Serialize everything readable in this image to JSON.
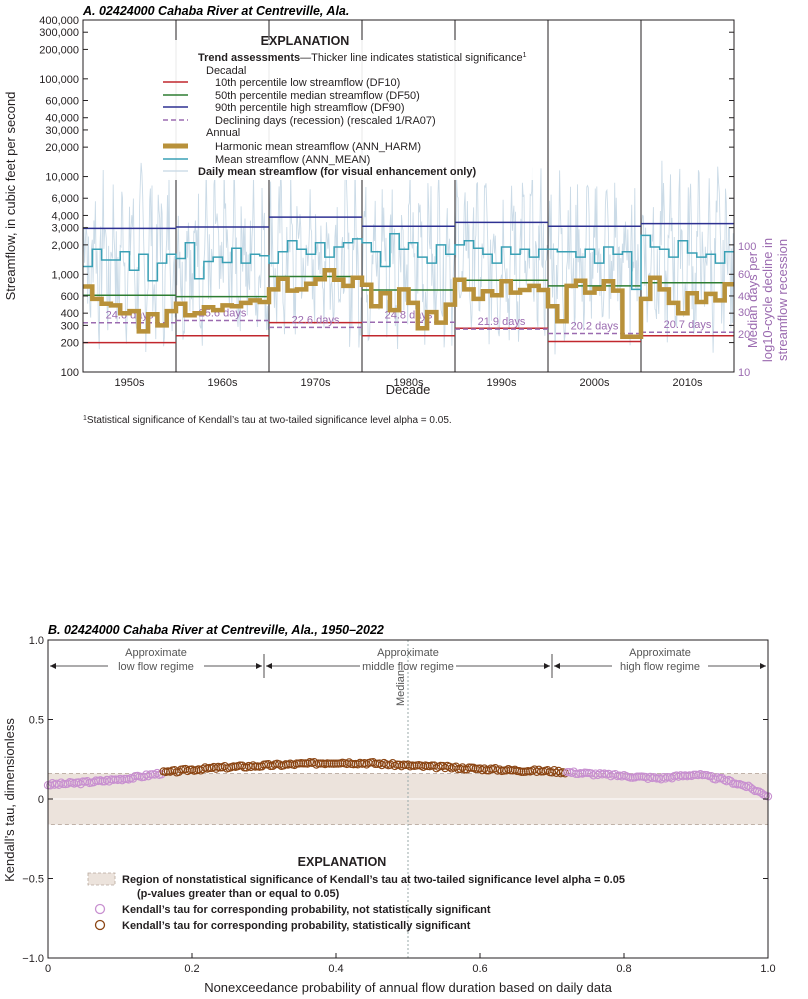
{
  "chart_data": [
    {
      "type": "line",
      "title": "A. 02424000 Cahaba River at Centreville, Ala.",
      "xlabel": "Decade",
      "ylabel": "Streamflow, in cubic feet per second",
      "y2label": [
        "Median days per",
        "log10-cycle decline in",
        "streamflow recession"
      ],
      "yscale": "log",
      "ylim": [
        100,
        400000
      ],
      "y_ticks": [
        "100",
        "200",
        "300",
        "400",
        "600",
        "1,000",
        "2,000",
        "3,000",
        "4,000",
        "6,000",
        "10,000",
        "20,000",
        "30,000",
        "40,000",
        "60,000",
        "100,000",
        "200,000",
        "300,000",
        "400,000"
      ],
      "y_tick_values": [
        100,
        200,
        300,
        400,
        600,
        1000,
        2000,
        3000,
        4000,
        6000,
        10000,
        20000,
        30000,
        40000,
        60000,
        100000,
        200000,
        300000,
        400000
      ],
      "y2_ticks": [
        "10",
        "20",
        "30",
        "40",
        "60",
        "100"
      ],
      "y2_tick_values": [
        10,
        20,
        30,
        40,
        60,
        100
      ],
      "decades": [
        "1950s",
        "1960s",
        "1970s",
        "1980s",
        "1990s",
        "2000s",
        "2010s"
      ],
      "xlim": [
        1945,
        2015
      ],
      "decadal_trends": {
        "DF10": [
          200,
          235,
          320,
          235,
          280,
          205,
          235
        ],
        "DF50": [
          610,
          590,
          950,
          690,
          870,
          760,
          820
        ],
        "DF90": [
          2950,
          3050,
          3850,
          3100,
          3400,
          3100,
          3300
        ],
        "recession_days": [
          24.6,
          25.6,
          22.6,
          24.8,
          21.9,
          20.2,
          20.7
        ],
        "recession_labels": [
          "24.6 days",
          "25.6 days",
          "22.6 days",
          "24.8 days",
          "21.9 days",
          "20.2 days",
          "20.7 days"
        ]
      },
      "annual_years": [
        1945,
        1946,
        1947,
        1948,
        1949,
        1950,
        1951,
        1952,
        1953,
        1954,
        1955,
        1956,
        1957,
        1958,
        1959,
        1960,
        1961,
        1962,
        1963,
        1964,
        1965,
        1966,
        1967,
        1968,
        1969,
        1970,
        1971,
        1972,
        1973,
        1974,
        1975,
        1976,
        1977,
        1978,
        1979,
        1980,
        1981,
        1982,
        1983,
        1984,
        1985,
        1986,
        1987,
        1988,
        1989,
        1990,
        1991,
        1992,
        1993,
        1994,
        1995,
        1996,
        1997,
        1998,
        1999,
        2000,
        2001,
        2002,
        2003,
        2004,
        2005,
        2006,
        2007,
        2008,
        2009,
        2010,
        2011,
        2012,
        2013,
        2014
      ],
      "ANN_HARM": [
        750,
        560,
        500,
        480,
        400,
        420,
        260,
        390,
        300,
        420,
        500,
        380,
        400,
        460,
        430,
        480,
        470,
        510,
        540,
        520,
        700,
        900,
        680,
        700,
        800,
        890,
        1100,
        880,
        760,
        920,
        780,
        470,
        640,
        430,
        700,
        510,
        280,
        410,
        320,
        490,
        880,
        700,
        560,
        670,
        610,
        850,
        650,
        690,
        760,
        690,
        470,
        330,
        760,
        860,
        650,
        710,
        850,
        680,
        230,
        230,
        560,
        920,
        700,
        510,
        400,
        640,
        520,
        630,
        540,
        790
      ],
      "ANN_MEAN": [
        1200,
        1800,
        1400,
        1400,
        1700,
        1100,
        1600,
        860,
        1300,
        1600,
        1450,
        2100,
        900,
        1350,
        1500,
        1320,
        1850,
        1300,
        1600,
        1550,
        1300,
        1700,
        2200,
        1800,
        1600,
        2100,
        1500,
        1900,
        2100,
        2300,
        2100,
        1700,
        1200,
        2600,
        1800,
        2100,
        1500,
        1300,
        2000,
        1600,
        2000,
        2200,
        1850,
        1600,
        1300,
        1900,
        1600,
        1800,
        1500,
        1800,
        1800,
        1700,
        1700,
        1500,
        1800,
        1300,
        1900,
        1600,
        1700,
        700,
        2500,
        1900,
        1800,
        1500,
        2200,
        1650,
        1500,
        1600,
        1300,
        1700
      ],
      "legend": {
        "title": "EXPLANATION",
        "subtitle_bold": "Trend assessments",
        "subtitle_rest": "—Thicker line indicates statistical significance",
        "decadal": "Decadal",
        "df10": "10th percentile low streamflow (DF10)",
        "df50": "50th percentile median streamflow (DF50)",
        "df90": "90th percentile high streamflow (DF90)",
        "ra07": "Declining days (recession) (rescaled 1/RA07)",
        "annual": "Annual",
        "harm": "Harmonic mean streamflow (ANN_HARM)",
        "mean": "Mean streamflow (ANN_MEAN)",
        "daily": "Daily mean streamflow (for visual enhancement only)"
      },
      "footnote_mark": "1",
      "footnote": "Statistical significance of Kendall’s tau at two-tailed significance level alpha = 0.05."
    },
    {
      "type": "scatter",
      "title": "B. 02424000 Cahaba River at Centreville, Ala., 1950–2022",
      "xlabel": "Nonexceedance probability of annual flow duration based on daily data",
      "ylabel": "Kendall’s tau, dimensionless",
      "xlim": [
        0,
        1
      ],
      "ylim": [
        -1,
        1
      ],
      "x_ticks": [
        "0",
        "0.2",
        "0.4",
        "0.6",
        "0.8",
        "1.0"
      ],
      "x_tick_values": [
        0,
        0.2,
        0.4,
        0.6,
        0.8,
        1.0
      ],
      "y_ticks": [
        "−1.0",
        "−0.5",
        "0",
        "0.5",
        "1.0"
      ],
      "y_tick_values": [
        -1,
        -0.5,
        0,
        0.5,
        1
      ],
      "significance_threshold": 0.16,
      "median_x": 0.5,
      "median_label": "Median",
      "regimes": [
        {
          "line1": "Approximate",
          "line2": "low flow regime"
        },
        {
          "line1": "Approximate",
          "line2": "middle flow regime"
        },
        {
          "line1": "Approximate",
          "line2": "high flow regime"
        }
      ],
      "regime_bounds": [
        0,
        0.3,
        0.7,
        1.0
      ],
      "tau_curve": [
        [
          0,
          0.09
        ],
        [
          0.04,
          0.1
        ],
        [
          0.08,
          0.115
        ],
        [
          0.12,
          0.135
        ],
        [
          0.16,
          0.165
        ],
        [
          0.2,
          0.185
        ],
        [
          0.25,
          0.2
        ],
        [
          0.3,
          0.21
        ],
        [
          0.35,
          0.22
        ],
        [
          0.4,
          0.23
        ],
        [
          0.45,
          0.225
        ],
        [
          0.5,
          0.21
        ],
        [
          0.55,
          0.2
        ],
        [
          0.6,
          0.19
        ],
        [
          0.65,
          0.18
        ],
        [
          0.7,
          0.175
        ],
        [
          0.75,
          0.16
        ],
        [
          0.8,
          0.145
        ],
        [
          0.85,
          0.13
        ],
        [
          0.9,
          0.155
        ],
        [
          0.94,
          0.12
        ],
        [
          0.97,
          0.08
        ],
        [
          1.0,
          0.02
        ]
      ],
      "significant_range": [
        0.16,
        0.72
      ],
      "legend": {
        "title": "EXPLANATION",
        "region_line1": "Region of nonstatistical significance of Kendall’s tau at two-tailed significance level alpha = 0.05",
        "region_line2": "(p-values greater than or equal to 0.05)",
        "not_sig": "Kendall’s tau for corresponding probability, not statistically significant",
        "sig": "Kendall’s tau for corresponding probability, statistically significant"
      }
    }
  ],
  "colors": {
    "df10": "#c1272d",
    "df50": "#2e7d32",
    "df90": "#2e3192",
    "ra07": "#9b6bb0",
    "harm": "#b8913a",
    "mean": "#3aa0b5",
    "daily": "#c5d7e4",
    "sig_point": "#8b4513",
    "nonsig_point": "#c890d0",
    "region": "#ece3dc"
  }
}
